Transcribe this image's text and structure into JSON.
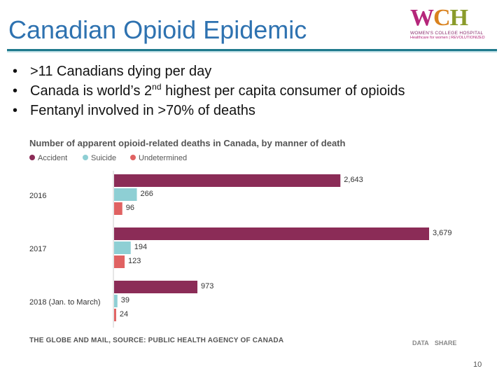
{
  "slide": {
    "title": "Canadian Opioid Epidemic",
    "page_number": "10",
    "bullets": [
      {
        "bullet": "•",
        "text": ">11 Canadians dying per day"
      },
      {
        "bullet": "•",
        "text_before": "Canada is world’s 2",
        "sup": "nd",
        "text_after": " highest per capita consumer of opioids"
      },
      {
        "bullet": "•",
        "text": "Fentanyl involved in >70% of deaths"
      }
    ]
  },
  "logo": {
    "mark_w": "W",
    "mark_c": "C",
    "mark_h": "H",
    "line1": "WOMEN'S COLLEGE HOSPITAL",
    "line2": "Healthcare for women | REVOLUTIONIZED"
  },
  "chart_data": {
    "type": "bar",
    "orientation": "horizontal",
    "title": "Number of apparent opioid-related deaths in Canada, by manner of death",
    "categories": [
      "2016",
      "2017",
      "2018 (Jan. to March)"
    ],
    "series": [
      {
        "name": "Accident",
        "color": "#8b2c57",
        "values": [
          2643,
          3679,
          973
        ],
        "labels": [
          "2,643",
          "3,679",
          "973"
        ]
      },
      {
        "name": "Suicide",
        "color": "#8ecfd4",
        "values": [
          266,
          194,
          39
        ],
        "labels": [
          "266",
          "194",
          "39"
        ]
      },
      {
        "name": "Undetermined",
        "color": "#e06262",
        "values": [
          96,
          123,
          24
        ],
        "labels": [
          "96",
          "123",
          "24"
        ]
      }
    ],
    "legend_position": "top-left",
    "grid": false,
    "xlim": [
      0,
      3679
    ],
    "source": "THE GLOBE AND MAIL, SOURCE: PUBLIC HEALTH AGENCY OF CANADA",
    "credit": "DATA SHARE"
  }
}
